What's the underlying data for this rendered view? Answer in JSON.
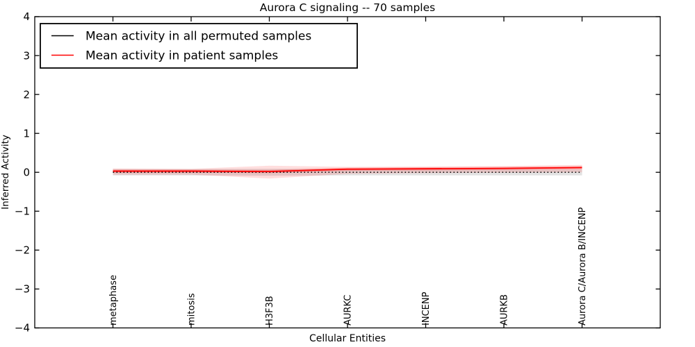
{
  "chart_data": {
    "type": "line",
    "title": "Aurora C signaling -- 70 samples",
    "xlabel": "Cellular Entities",
    "ylabel": "Inferred Activity",
    "ylim": [
      -4,
      4
    ],
    "xlim": [
      -1,
      7
    ],
    "yticks": [
      -4,
      -3,
      -2,
      -1,
      0,
      1,
      2,
      3,
      4
    ],
    "grid": false,
    "legend_position": "upper left",
    "categories": [
      "metaphase",
      "mitosis",
      "H3F3B",
      "AURKC",
      "INCENP",
      "AURKB",
      "Aurora C/Aurora B/INCENP"
    ],
    "series": [
      {
        "name": "Mean activity in all permuted samples",
        "color": "#000000",
        "linestyle": "dotted",
        "values": [
          0,
          0,
          0,
          0,
          0,
          0,
          0
        ],
        "band_upper": [
          0.08,
          0.08,
          0.09,
          0.08,
          0.08,
          0.08,
          0.08
        ],
        "band_lower": [
          -0.08,
          -0.08,
          -0.09,
          -0.08,
          -0.08,
          -0.08,
          -0.08
        ],
        "band_color": "#bfbfbf"
      },
      {
        "name": "Mean activity in patient samples",
        "color": "#ff0000",
        "linestyle": "solid",
        "values": [
          0.03,
          0.03,
          0.02,
          0.08,
          0.09,
          0.1,
          0.12
        ],
        "band_upper": [
          0.1,
          0.09,
          0.17,
          0.14,
          0.15,
          0.16,
          0.19
        ],
        "band_lower": [
          -0.06,
          -0.06,
          -0.16,
          -0.04,
          -0.02,
          -0.01,
          0.0
        ],
        "inner_band_upper": [
          0.07,
          0.07,
          0.06,
          0.12,
          0.13,
          0.14,
          0.16
        ],
        "inner_band_lower": [
          -0.01,
          -0.01,
          -0.02,
          0.04,
          0.05,
          0.06,
          0.08
        ],
        "band_color": "#ff0000"
      }
    ]
  }
}
